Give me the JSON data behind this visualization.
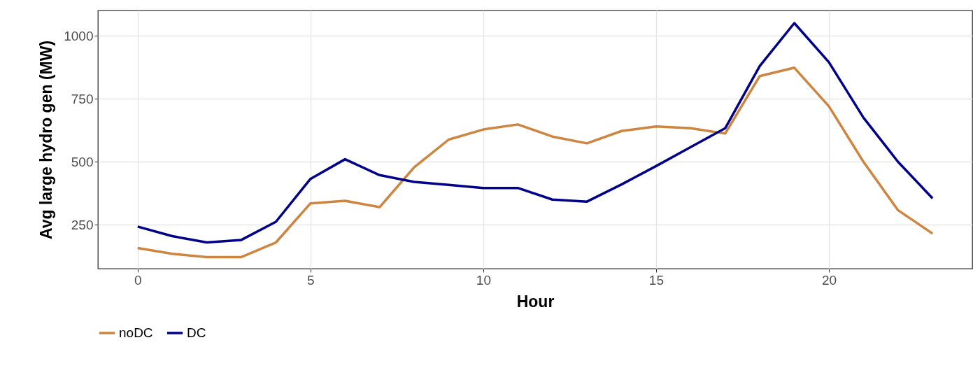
{
  "chart_data": {
    "type": "line",
    "xlabel": "Hour",
    "ylabel": "Avg large hydro gen (MW)",
    "x": [
      0,
      1,
      2,
      3,
      4,
      5,
      6,
      7,
      8,
      9,
      10,
      11,
      12,
      13,
      14,
      15,
      16,
      17,
      18,
      19,
      20,
      21,
      22,
      23
    ],
    "series": [
      {
        "name": "noDC",
        "color": "#cd853f",
        "values": [
          158,
          135,
          122,
          122,
          180,
          335,
          345,
          320,
          478,
          588,
          628,
          648,
          600,
          573,
          622,
          640,
          633,
          612,
          840,
          873,
          720,
          500,
          308,
          215
        ]
      },
      {
        "name": "DC",
        "color": "#00008b",
        "values": [
          243,
          205,
          180,
          190,
          262,
          432,
          510,
          447,
          420,
          408,
          396,
          396,
          350,
          342,
          410,
          483,
          558,
          633,
          880,
          1050,
          895,
          675,
          500,
          355
        ]
      }
    ],
    "xlim": [
      -1.15,
      24.15
    ],
    "xticks": [
      0,
      5,
      10,
      15,
      20
    ],
    "ylim": [
      76,
      1100
    ],
    "yticks": [
      250,
      500,
      750,
      1000
    ],
    "grid": true,
    "legend": "bottom",
    "marker": "none",
    "line_style": "solid"
  }
}
